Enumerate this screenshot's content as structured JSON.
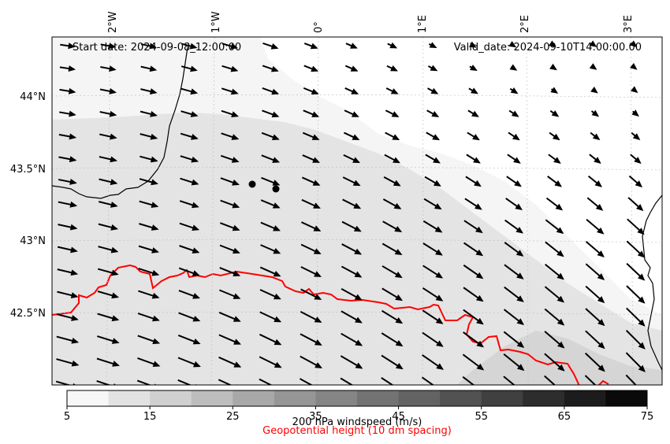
{
  "map": {
    "start_date": "Start date: 2024-09-08_12:00:00",
    "valid_date": "Valid_date: 2024-09-10T14:00:00.00",
    "lon_labels": [
      "2°W",
      "1°W",
      "0°",
      "1°E",
      "2°E",
      "3°E"
    ],
    "lat_labels": [
      "44°N",
      "43.5°N",
      "43°N",
      "42.5°N"
    ]
  },
  "colorbar": {
    "ticks": [
      "5",
      "15",
      "25",
      "35",
      "45",
      "55",
      "65",
      "75"
    ],
    "label": "200 hPa windspeed (m/s)",
    "label2": "Geopotential height (10 dm spacing)",
    "colors": [
      "#f7f7f7",
      "#e2e2e2",
      "#d0d0d0",
      "#bdbdbd",
      "#a8a8a8",
      "#969696",
      "#858585",
      "#737373",
      "#636363",
      "#525252",
      "#404040",
      "#2d2d2d",
      "#1c1c1c",
      "#0a0a0a"
    ]
  },
  "colors": {
    "contour": "#ff0000",
    "coast": "#000000",
    "arrow": "#000000"
  }
}
